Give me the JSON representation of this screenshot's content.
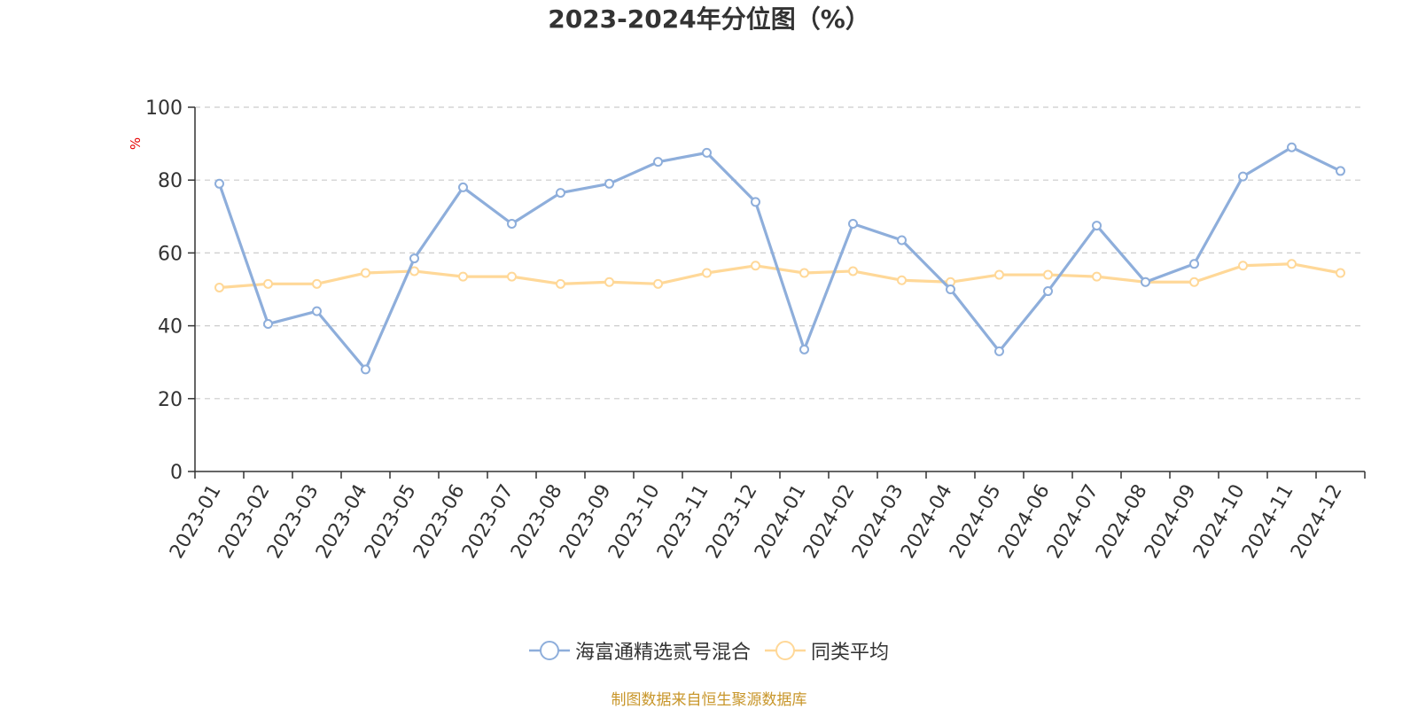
{
  "chart_data": {
    "type": "line",
    "title": "2023-2024年分位图（%）",
    "ylabel": "%",
    "ylim": [
      0,
      100
    ],
    "yticks": [
      0,
      20,
      40,
      60,
      80,
      100
    ],
    "grid": true,
    "legend_position": "bottom",
    "categories": [
      "2023-01",
      "2023-02",
      "2023-03",
      "2023-04",
      "2023-05",
      "2023-06",
      "2023-07",
      "2023-08",
      "2023-09",
      "2023-10",
      "2023-11",
      "2023-12",
      "2024-01",
      "2024-02",
      "2024-03",
      "2024-04",
      "2024-05",
      "2024-06",
      "2024-07",
      "2024-08",
      "2024-09",
      "2024-10",
      "2024-11",
      "2024-12"
    ],
    "series": [
      {
        "name": "海富通精选贰号混合",
        "color": "#8eaedb",
        "values": [
          79,
          40.5,
          44,
          28,
          58.5,
          78,
          68,
          76.5,
          79,
          85,
          87.5,
          74,
          33.5,
          68,
          63.5,
          50,
          33,
          49.5,
          67.5,
          52,
          57,
          81,
          89,
          82.5
        ]
      },
      {
        "name": "同类平均",
        "color": "#ffd898",
        "values": [
          50.5,
          51.5,
          51.5,
          54.5,
          55,
          53.5,
          53.5,
          51.5,
          52,
          51.5,
          54.5,
          56.5,
          54.5,
          55,
          52.5,
          52,
          54,
          54,
          53.5,
          52,
          52,
          56.5,
          57,
          54.5
        ]
      }
    ]
  },
  "source_text": "制图数据来自恒生聚源数据库"
}
